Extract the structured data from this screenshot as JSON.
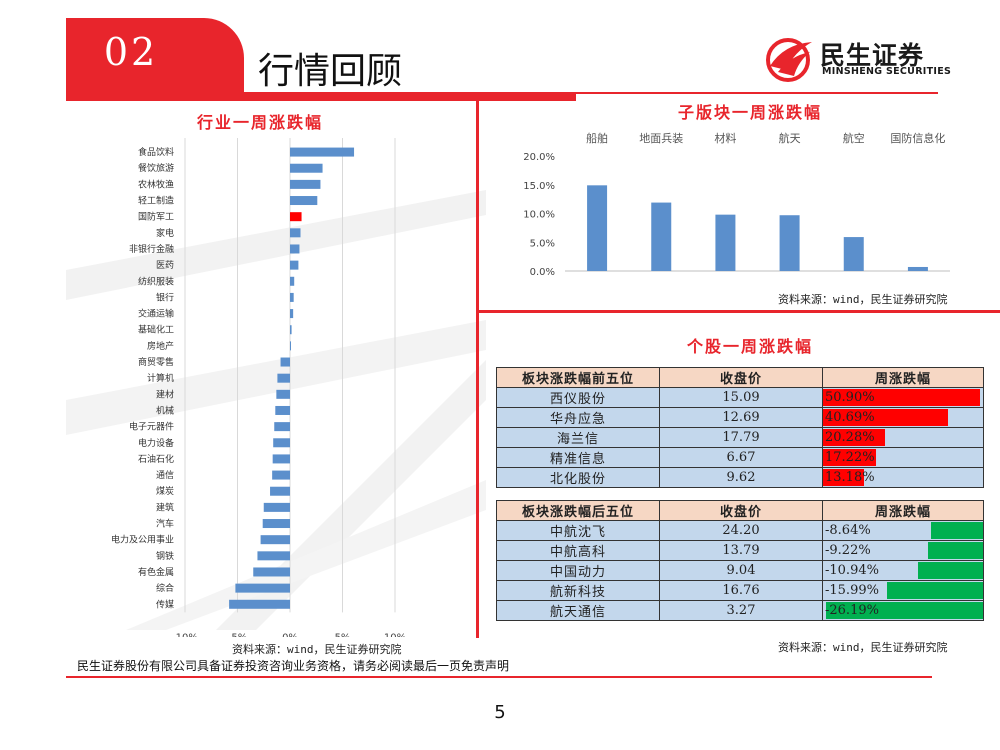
{
  "header": {
    "section_number": "02",
    "title": "行情回顾",
    "logo_name": "民生证券",
    "logo_en": "MINSHENG SECURITIES"
  },
  "colors": {
    "accent_red": "#e8252c",
    "bar_blue": "#5b8fcc",
    "highlight_red": "#ff0000",
    "gain_red": "#ff0000",
    "loss_green": "#00b050",
    "table_header_bg": "#f6d7c4",
    "table_cell_bg": "#c3d7ec"
  },
  "industry": {
    "title": "行业一周涨跌幅",
    "source": "资料来源：wind，民生证券研究院"
  },
  "subsector": {
    "title": "子版块一周涨跌幅",
    "source": "资料来源：wind，民生证券研究院"
  },
  "stocks": {
    "title": "个股一周涨跌幅",
    "source": "资料来源：wind，民生证券研究院",
    "top": {
      "headers": [
        "板块涨跌幅前五位",
        "收盘价",
        "周涨跌幅"
      ],
      "rows": [
        {
          "name": "西仪股份",
          "price": "15.09",
          "change": "50.90%",
          "value": 50.9
        },
        {
          "name": "华舟应急",
          "price": "12.69",
          "change": "40.69%",
          "value": 40.69
        },
        {
          "name": "海兰信",
          "price": "17.79",
          "change": "20.28%",
          "value": 20.28
        },
        {
          "name": "精准信息",
          "price": "6.67",
          "change": "17.22%",
          "value": 17.22
        },
        {
          "name": "北化股份",
          "price": "9.62",
          "change": "13.18%",
          "value": 13.18
        }
      ]
    },
    "bottom": {
      "headers": [
        "板块涨跌幅后五位",
        "收盘价",
        "周涨跌幅"
      ],
      "rows": [
        {
          "name": "中航沈飞",
          "price": "24.20",
          "change": "-8.64%",
          "value": -8.64
        },
        {
          "name": "中航高科",
          "price": "13.79",
          "change": "-9.22%",
          "value": -9.22
        },
        {
          "name": "中国动力",
          "price": "9.04",
          "change": "-10.94%",
          "value": -10.94
        },
        {
          "name": "航新科技",
          "price": "16.76",
          "change": "-15.99%",
          "value": -15.99
        },
        {
          "name": "航天通信",
          "price": "3.27",
          "change": "-26.19%",
          "value": -26.19
        }
      ]
    }
  },
  "footer": {
    "disclaimer": "民生证券股份有限公司具备证券投资咨询业务资格，请务必阅读最后一页免责声明",
    "page_number": "5"
  },
  "chart_data": [
    {
      "type": "bar",
      "orientation": "horizontal",
      "title": "行业一周涨跌幅",
      "categories": [
        "食品饮料",
        "餐饮旅游",
        "农林牧渔",
        "轻工制造",
        "国防军工",
        "家电",
        "非银行金融",
        "医药",
        "纺织服装",
        "银行",
        "交通运输",
        "基础化工",
        "房地产",
        "商贸零售",
        "计算机",
        "建材",
        "机械",
        "电子元器件",
        "电力设备",
        "石油石化",
        "通信",
        "煤炭",
        "建筑",
        "汽车",
        "电力及公用事业",
        "钢铁",
        "有色金属",
        "综合",
        "传媒"
      ],
      "values": [
        6.1,
        3.1,
        2.9,
        2.6,
        1.1,
        1.0,
        0.9,
        0.8,
        0.4,
        0.35,
        0.3,
        0.15,
        0.05,
        -0.9,
        -1.2,
        -1.3,
        -1.4,
        -1.5,
        -1.6,
        -1.65,
        -1.7,
        -1.9,
        -2.5,
        -2.6,
        -2.8,
        -3.1,
        -3.5,
        -5.2,
        -5.8
      ],
      "highlight": "国防军工",
      "xlim": [
        -10,
        10
      ],
      "xticks": [
        "-10%",
        "-5%",
        "0%",
        "5%",
        "10%"
      ]
    },
    {
      "type": "bar",
      "title": "子版块一周涨跌幅",
      "categories": [
        "船舶",
        "地面兵装",
        "材料",
        "航天",
        "航空",
        "国防信息化"
      ],
      "values": [
        14.9,
        11.9,
        9.8,
        9.7,
        5.9,
        0.7
      ],
      "ylim": [
        0,
        20
      ],
      "yticks": [
        "0.0%",
        "5.0%",
        "10.0%",
        "15.0%",
        "20.0%"
      ]
    }
  ]
}
